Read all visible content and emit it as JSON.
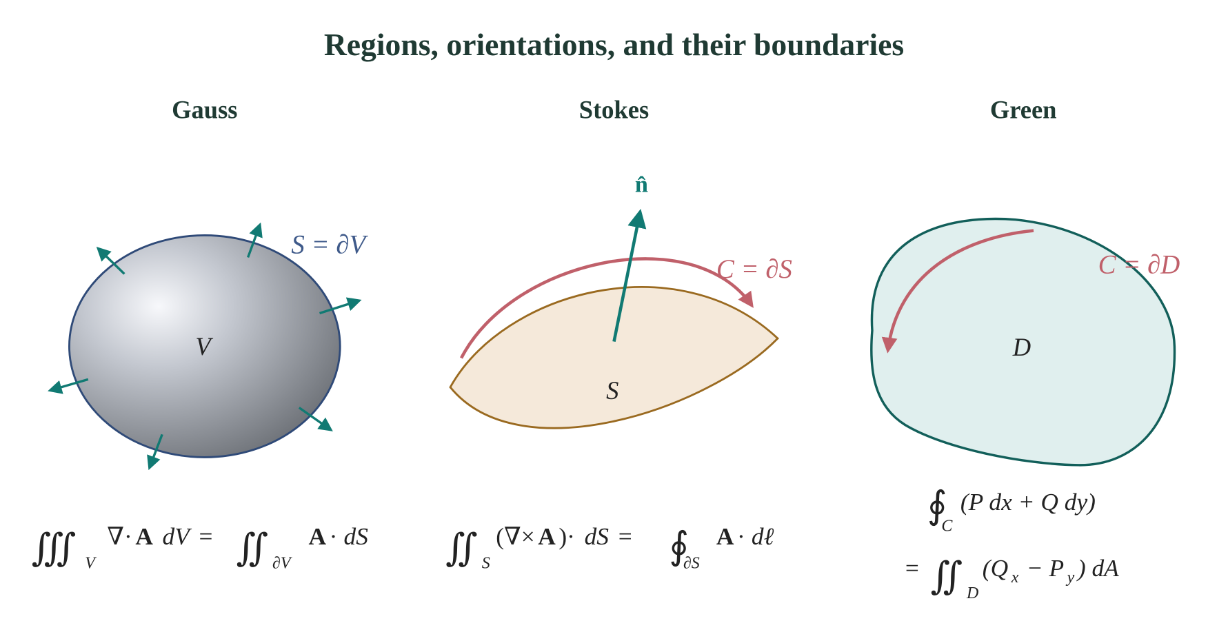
{
  "title": "Regions, orientations, and their boundaries",
  "panels": [
    {
      "heading": "Gauss",
      "region_label": "V",
      "boundary_label": "S = ∂V",
      "formula": [
        "∭",
        "V",
        "∇·",
        "A",
        "dV",
        "=",
        "∬",
        "∂V",
        "A",
        "·",
        "dS"
      ]
    },
    {
      "heading": "Stokes",
      "region_label": "S",
      "boundary_label": "C = ∂S",
      "normal_label": "n̂",
      "formula": [
        "∬",
        "S",
        "(∇×",
        "A",
        ")·",
        "dS",
        "=",
        "∮",
        "∂S",
        "A",
        "·",
        "dℓ"
      ]
    },
    {
      "heading": "Green",
      "region_label": "D",
      "boundary_label": "C = ∂D",
      "formula": [
        "∮",
        "C",
        "(P dx + Q dy)",
        "=",
        "∬",
        "D",
        "(Q",
        "x",
        "− P",
        "y",
        ") dA"
      ]
    }
  ]
}
